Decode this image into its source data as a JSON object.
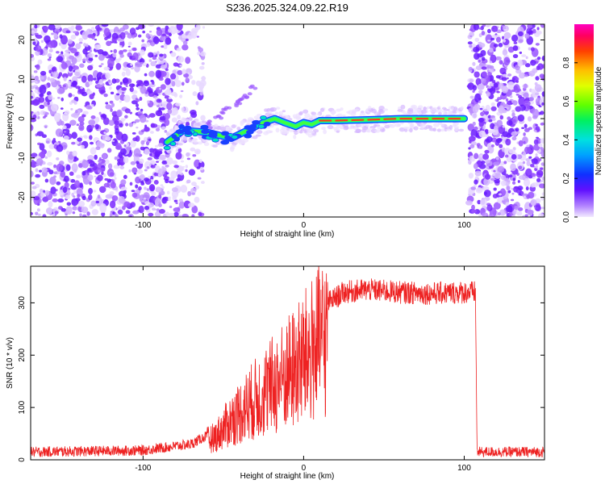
{
  "title": "S236.2025.324.09.22.R19",
  "chart_data": [
    {
      "type": "heatmap",
      "xlabel": "Height of straight line (km)",
      "ylabel": "Frequency (Hz)",
      "xlim": [
        -170,
        150
      ],
      "ylim": [
        -25,
        24
      ],
      "xticks": [
        -100,
        0,
        100
      ],
      "yticks": [
        -20,
        -10,
        0,
        10,
        20
      ],
      "colorbar": {
        "label": "Normalized spectral amplitude",
        "range": [
          0,
          1
        ],
        "ticks": [
          0.0,
          0.2,
          0.4,
          0.6,
          0.8
        ]
      },
      "trace": {
        "description_points_x": [
          -85,
          -75,
          -60,
          -45,
          -35,
          -25,
          -18,
          -12,
          -5,
          0,
          5,
          10,
          20,
          40,
          60,
          80,
          100
        ],
        "description_points_y": [
          -6,
          -3,
          -3.5,
          -5,
          -3,
          -1,
          0,
          -1,
          -2,
          -1,
          -1.5,
          -0.5,
          -0.5,
          -0.3,
          0,
          0,
          0
        ]
      }
    },
    {
      "type": "line",
      "xlabel": "Height of straight line (km)",
      "ylabel": "SNR (10 * v/v)",
      "xlim": [
        -170,
        150
      ],
      "ylim": [
        0,
        370
      ],
      "xticks": [
        -100,
        0,
        100
      ],
      "yticks": [
        0,
        100,
        200,
        300
      ],
      "color": "#ee2222",
      "envelope_x": [
        -170,
        -100,
        -70,
        -55,
        -45,
        -35,
        -25,
        -15,
        -5,
        5,
        15,
        25,
        40,
        60,
        80,
        100,
        107,
        108,
        150
      ],
      "envelope_y": [
        15,
        18,
        30,
        55,
        95,
        130,
        160,
        190,
        220,
        260,
        300,
        320,
        325,
        320,
        318,
        320,
        320,
        15,
        15
      ]
    }
  ]
}
